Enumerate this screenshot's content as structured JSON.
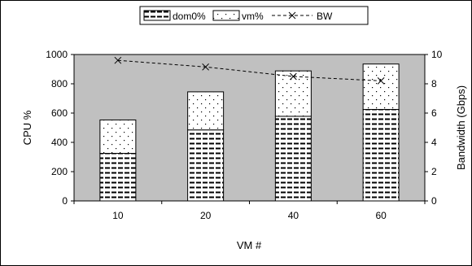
{
  "chart_data": {
    "type": "bar",
    "stacked": true,
    "categories": [
      "10",
      "20",
      "40",
      "60"
    ],
    "series": [
      {
        "name": "dom0%",
        "axis": "left",
        "pattern": "dashes",
        "values": [
          325,
          485,
          578,
          625
        ]
      },
      {
        "name": "vm%",
        "axis": "left",
        "pattern": "dots",
        "values": [
          228,
          260,
          310,
          310
        ]
      }
    ],
    "line_series": [
      {
        "name": "BW",
        "axis": "right",
        "style": "dashed-line-x-marker",
        "values": [
          9.6,
          9.15,
          8.5,
          8.2
        ]
      }
    ],
    "xlabel": "VM #",
    "ylabel": "CPU %",
    "y2label": "Bandwidth (Gbps)",
    "ylim": [
      0,
      1000
    ],
    "y2lim": [
      0,
      10
    ],
    "yticks": [
      0,
      200,
      400,
      600,
      800,
      1000
    ],
    "y2ticks": [
      0,
      2,
      4,
      6,
      8,
      10
    ],
    "grid": false,
    "legend_position": "top-center",
    "colors": {
      "plot_background": "#c0c0c0",
      "bar_fill": "#ffffff",
      "marks": "#000000"
    }
  }
}
